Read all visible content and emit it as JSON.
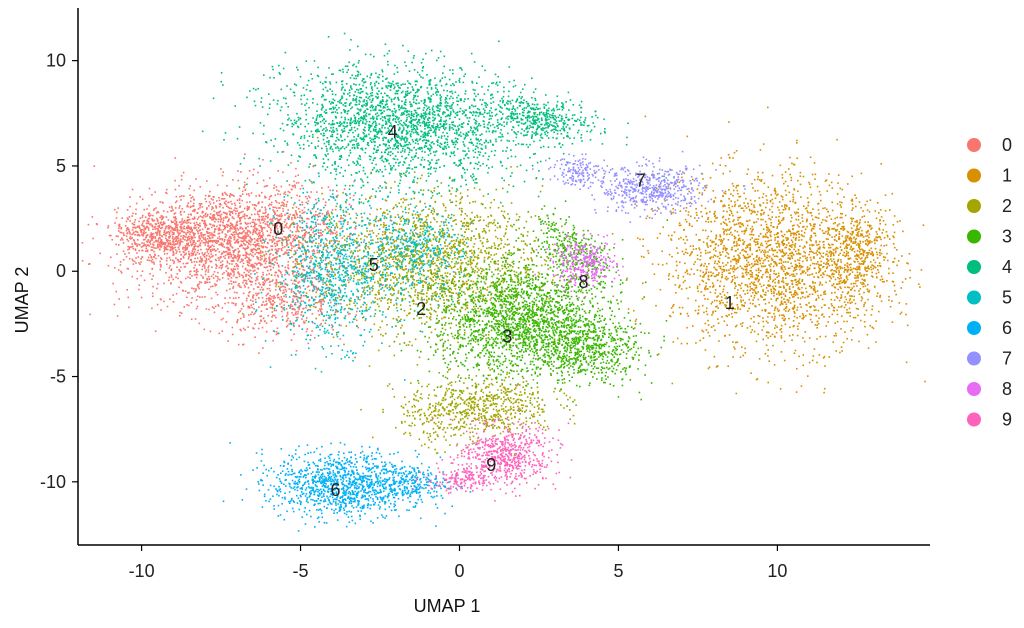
{
  "chart_data": {
    "type": "scatter",
    "xlabel": "UMAP 1",
    "ylabel": "UMAP 2",
    "xlim": [
      -12,
      14.8
    ],
    "ylim": [
      -13,
      12.5
    ],
    "xticks": [
      -10,
      -5,
      0,
      5,
      10
    ],
    "yticks": [
      10,
      5,
      0,
      -5,
      -10
    ],
    "xtick_labels": [
      "-10",
      "-5",
      "0",
      "5",
      "10"
    ],
    "ytick_labels": [
      "10",
      "5",
      "0",
      "-5",
      "-10"
    ],
    "grid": false,
    "legend_position": "right",
    "clusters": [
      {
        "name": "0",
        "color": "#F8766D",
        "label_at": [
          -5.7,
          2.0
        ]
      },
      {
        "name": "1",
        "color": "#D89000",
        "label_at": [
          8.5,
          -1.5
        ]
      },
      {
        "name": "2",
        "color": "#A3A500",
        "label_at": [
          -1.2,
          -1.8
        ]
      },
      {
        "name": "3",
        "color": "#39B600",
        "label_at": [
          1.5,
          -3.1
        ]
      },
      {
        "name": "4",
        "color": "#00BF7D",
        "label_at": [
          -2.1,
          6.6
        ]
      },
      {
        "name": "5",
        "color": "#00BFC4",
        "label_at": [
          -2.7,
          0.3
        ]
      },
      {
        "name": "6",
        "color": "#00B0F6",
        "label_at": [
          -3.9,
          -10.4
        ]
      },
      {
        "name": "7",
        "color": "#9590FF",
        "label_at": [
          5.7,
          4.3
        ]
      },
      {
        "name": "8",
        "color": "#E76BF3",
        "label_at": [
          3.9,
          -0.5
        ]
      },
      {
        "name": "9",
        "color": "#FF62BC",
        "label_at": [
          1.0,
          -9.2
        ]
      }
    ]
  }
}
